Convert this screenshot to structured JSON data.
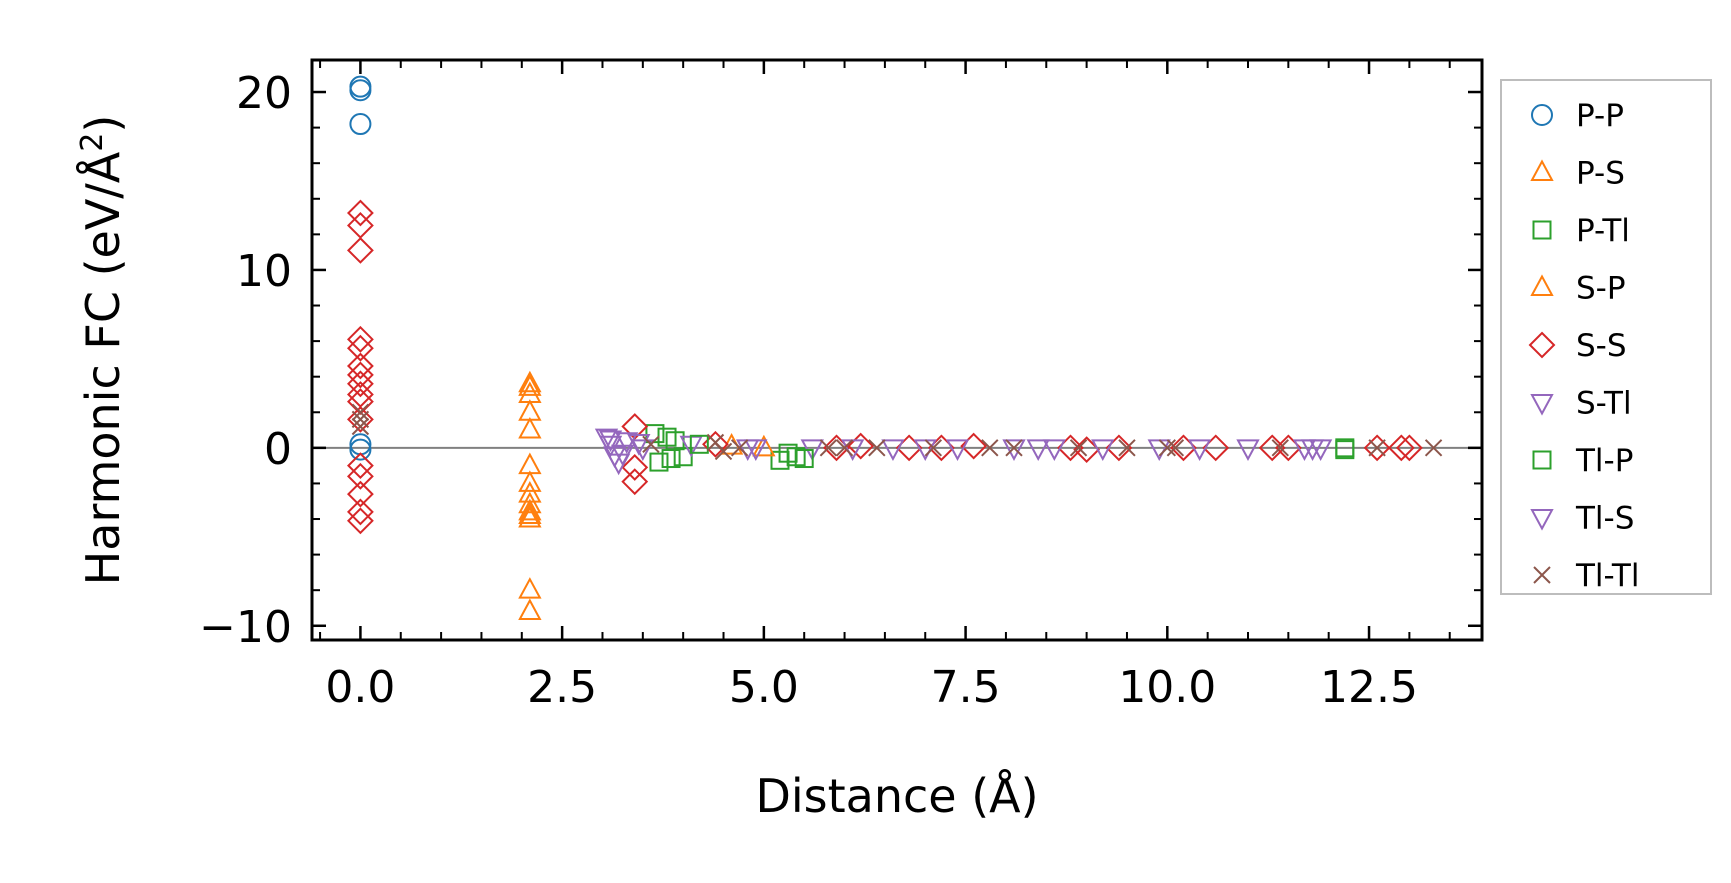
{
  "chart_data": {
    "type": "scatter",
    "title": "",
    "xlabel": "Distance (Å)",
    "ylabel_main": "Harmonic FC (eV/Å",
    "ylabel_sup": "2",
    "ylabel_end": ")",
    "xlim": [
      -0.6,
      13.9
    ],
    "ylim": [
      -10.8,
      21.8
    ],
    "xticks": [
      0.0,
      2.5,
      5.0,
      7.5,
      10.0,
      12.5
    ],
    "xtick_labels": [
      "0.0",
      "2.5",
      "5.0",
      "7.5",
      "10.0",
      "12.5"
    ],
    "yticks": [
      -10,
      0,
      10,
      20
    ],
    "ytick_labels": [
      "−10",
      "0",
      "10",
      "20"
    ],
    "x_minor_step": 0.5,
    "y_minor_step": 2,
    "grid": false,
    "reference_line_y": 0,
    "legend_position": "right, outside plot",
    "series": [
      {
        "name": "P-P",
        "color": "#1f77b4",
        "marker": "circle",
        "points": [
          [
            0.0,
            20.3
          ],
          [
            0.0,
            20.1
          ],
          [
            0.0,
            18.2
          ],
          [
            0.0,
            0.2
          ],
          [
            0.0,
            -0.1
          ]
        ]
      },
      {
        "name": "P-S",
        "color": "#ff7f0e",
        "marker": "triangle-up",
        "points": [
          [
            2.1,
            3.4
          ],
          [
            2.1,
            3.0
          ],
          [
            2.1,
            2.0
          ],
          [
            2.1,
            1.0
          ],
          [
            2.1,
            -1.0
          ],
          [
            2.1,
            -2.0
          ],
          [
            2.1,
            -2.6
          ],
          [
            2.1,
            -3.2
          ],
          [
            2.1,
            -3.6
          ],
          [
            2.1,
            -4.0
          ],
          [
            2.1,
            -8.0
          ],
          [
            2.1,
            -9.2
          ]
        ]
      },
      {
        "name": "P-Tl",
        "color": "#2ca02c",
        "marker": "square",
        "points": [
          [
            3.65,
            0.8
          ],
          [
            3.7,
            -0.8
          ],
          [
            3.9,
            0.4
          ],
          [
            4.0,
            -0.5
          ],
          [
            5.2,
            -0.7
          ],
          [
            5.4,
            -0.5
          ],
          [
            12.2,
            0.0
          ]
        ]
      },
      {
        "name": "S-P",
        "color": "#ff7f0e",
        "marker": "triangle-up",
        "points": [
          [
            2.1,
            3.6
          ],
          [
            2.1,
            -3.8
          ],
          [
            4.6,
            0.1
          ],
          [
            5.0,
            0.0
          ]
        ]
      },
      {
        "name": "S-S",
        "color": "#d62728",
        "marker": "diamond",
        "points": [
          [
            0.0,
            13.2
          ],
          [
            0.0,
            12.5
          ],
          [
            0.0,
            11.1
          ],
          [
            0.0,
            6.1
          ],
          [
            0.0,
            5.6
          ],
          [
            0.0,
            4.6
          ],
          [
            0.0,
            4.1
          ],
          [
            0.0,
            3.6
          ],
          [
            0.0,
            3.0
          ],
          [
            0.0,
            2.6
          ],
          [
            0.0,
            1.6
          ],
          [
            0.0,
            -1.0
          ],
          [
            0.0,
            -1.6
          ],
          [
            0.0,
            -2.6
          ],
          [
            0.0,
            -3.6
          ],
          [
            0.0,
            -4.1
          ],
          [
            3.4,
            1.2
          ],
          [
            3.4,
            -1.1
          ],
          [
            3.4,
            -1.9
          ],
          [
            4.4,
            0.2
          ],
          [
            5.9,
            0.0
          ],
          [
            6.2,
            0.1
          ],
          [
            6.8,
            0.0
          ],
          [
            7.2,
            0.0
          ],
          [
            7.6,
            0.1
          ],
          [
            8.8,
            0.0
          ],
          [
            9.0,
            -0.1
          ],
          [
            9.4,
            0.0
          ],
          [
            10.2,
            0.0
          ],
          [
            10.6,
            0.0
          ],
          [
            11.3,
            0.0
          ],
          [
            11.5,
            0.0
          ],
          [
            12.6,
            0.0
          ],
          [
            12.9,
            0.0
          ],
          [
            13.0,
            0.0
          ]
        ]
      },
      {
        "name": "S-Tl",
        "color": "#9467bd",
        "marker": "triangle-down",
        "points": [
          [
            3.05,
            0.6
          ],
          [
            3.1,
            0.2
          ],
          [
            3.15,
            -0.4
          ],
          [
            3.2,
            -0.8
          ],
          [
            3.3,
            0.4
          ],
          [
            3.5,
            0.0
          ],
          [
            4.1,
            0.2
          ],
          [
            4.9,
            0.0
          ],
          [
            5.6,
            0.0
          ],
          [
            6.1,
            0.0
          ],
          [
            6.6,
            0.0
          ],
          [
            7.4,
            0.0
          ],
          [
            8.1,
            0.0
          ],
          [
            8.4,
            0.0
          ],
          [
            9.2,
            0.0
          ],
          [
            9.9,
            0.0
          ],
          [
            11.0,
            0.0
          ],
          [
            11.8,
            0.0
          ],
          [
            11.9,
            0.0
          ]
        ]
      },
      {
        "name": "Tl-P",
        "color": "#2ca02c",
        "marker": "square",
        "points": [
          [
            3.8,
            0.6
          ],
          [
            3.85,
            -0.6
          ],
          [
            4.2,
            0.2
          ],
          [
            5.3,
            -0.3
          ],
          [
            5.5,
            -0.6
          ],
          [
            12.2,
            -0.1
          ]
        ]
      },
      {
        "name": "Tl-S",
        "color": "#9467bd",
        "marker": "triangle-down",
        "points": [
          [
            3.1,
            0.5
          ],
          [
            3.25,
            -0.3
          ],
          [
            3.45,
            0.3
          ],
          [
            4.8,
            0.0
          ],
          [
            7.0,
            0.0
          ],
          [
            8.6,
            0.0
          ],
          [
            10.4,
            0.0
          ],
          [
            11.7,
            0.0
          ]
        ]
      },
      {
        "name": "Tl-Tl",
        "color": "#8c564b",
        "marker": "x",
        "points": [
          [
            0.0,
            2.0
          ],
          [
            0.0,
            1.6
          ],
          [
            0.0,
            1.2
          ],
          [
            3.6,
            0.2
          ],
          [
            4.4,
            0.3
          ],
          [
            4.5,
            -0.2
          ],
          [
            4.7,
            0.0
          ],
          [
            5.8,
            0.0
          ],
          [
            6.0,
            0.0
          ],
          [
            6.4,
            0.0
          ],
          [
            7.1,
            0.0
          ],
          [
            7.8,
            0.0
          ],
          [
            8.1,
            0.0
          ],
          [
            8.9,
            0.0
          ],
          [
            9.5,
            0.0
          ],
          [
            10.0,
            0.0
          ],
          [
            10.1,
            0.0
          ],
          [
            11.4,
            0.0
          ],
          [
            12.6,
            0.0
          ],
          [
            13.3,
            0.0
          ]
        ]
      }
    ]
  }
}
